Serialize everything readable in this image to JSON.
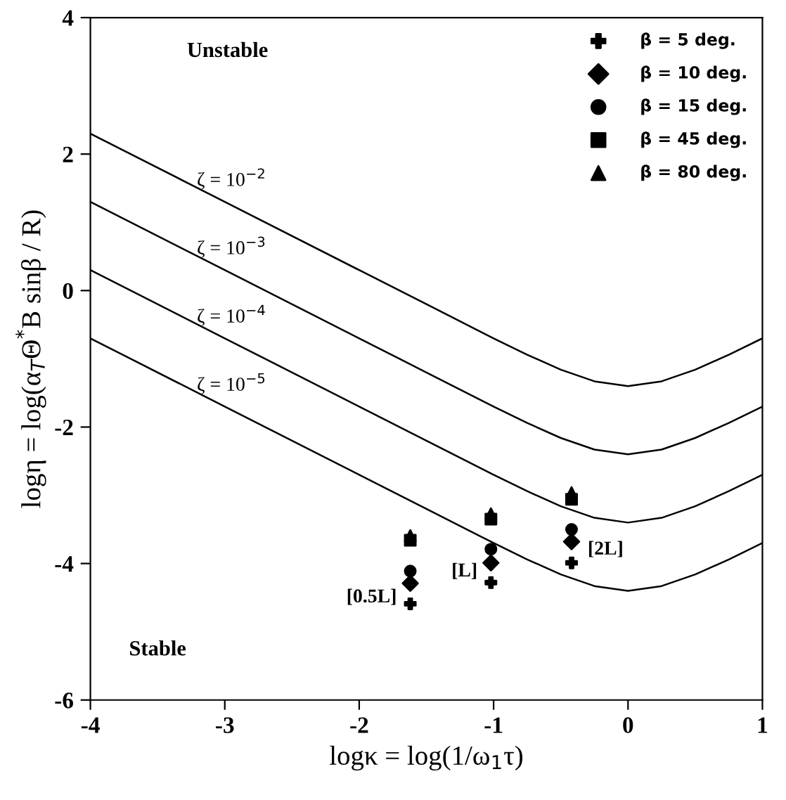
{
  "chart_data": {
    "type": "line",
    "xlabel": "logκ = log(1/ω$_{1}$τ)",
    "ylabel": "logη = log(α$_{T}$Θ$^{*}$B sinβ / R)",
    "xlim": [
      -4,
      1
    ],
    "ylim": [
      -6,
      4
    ],
    "xticks": [
      -4,
      -3,
      -2,
      -1,
      0,
      1
    ],
    "yticks": [
      -6,
      -4,
      -2,
      0,
      2,
      4
    ],
    "grid": false,
    "legend": "top right",
    "series": [
      {
        "name": "ζ = 10$^{−2}$",
        "color": "#000000",
        "marker": "none",
        "x": [
          -4,
          -3,
          -2,
          -1.5,
          -1,
          -0.75,
          -0.5,
          -0.25,
          0,
          0.25,
          0.5,
          0.75,
          1
        ],
        "values": [
          2.3,
          1.3,
          0.3,
          -0.2,
          -0.7,
          -0.94,
          -1.16,
          -1.33,
          -1.4,
          -1.33,
          -1.16,
          -0.94,
          -0.7
        ]
      },
      {
        "name": "ζ = 10$^{−3}$",
        "color": "#000000",
        "marker": "none",
        "x": [
          -4,
          -3,
          -2,
          -1.5,
          -1,
          -0.75,
          -0.5,
          -0.25,
          0,
          0.25,
          0.5,
          0.75,
          1
        ],
        "values": [
          1.3,
          0.3,
          -0.7,
          -1.2,
          -1.7,
          -1.94,
          -2.16,
          -2.33,
          -2.4,
          -2.33,
          -2.16,
          -1.94,
          -1.7
        ]
      },
      {
        "name": "ζ = 10$^{−4}$",
        "color": "#000000",
        "marker": "none",
        "x": [
          -4,
          -3,
          -2,
          -1.5,
          -1,
          -0.75,
          -0.5,
          -0.25,
          0,
          0.25,
          0.5,
          0.75,
          1
        ],
        "values": [
          0.3,
          -0.7,
          -1.7,
          -2.2,
          -2.7,
          -2.94,
          -3.16,
          -3.33,
          -3.4,
          -3.33,
          -3.16,
          -2.94,
          -2.7
        ]
      },
      {
        "name": "ζ = 10$^{−5}$",
        "color": "#000000",
        "marker": "none",
        "x": [
          -4,
          -3,
          -2,
          -1.5,
          -1,
          -0.75,
          -0.5,
          -0.25,
          0,
          0.25,
          0.5,
          0.75,
          1
        ],
        "values": [
          -0.7,
          -1.7,
          -2.7,
          -3.2,
          -3.7,
          -3.94,
          -4.16,
          -4.33,
          -4.4,
          -4.33,
          -4.16,
          -3.94,
          -3.7
        ]
      },
      {
        "type": "scatter",
        "name": "β = 5 deg.",
        "color": "#000000",
        "marker": "cross",
        "x": [
          -1.62,
          -1.02,
          -0.42
        ],
        "values": [
          -4.59,
          -4.28,
          -3.99
        ]
      },
      {
        "type": "scatter",
        "name": "β = 10 deg.",
        "color": "#000000",
        "marker": "diamond",
        "x": [
          -1.62,
          -1.02,
          -0.42
        ],
        "values": [
          -4.29,
          -3.99,
          -3.68
        ]
      },
      {
        "type": "scatter",
        "name": "β = 15 deg.",
        "color": "#000000",
        "marker": "circle",
        "x": [
          -1.62,
          -1.02,
          -0.42
        ],
        "values": [
          -4.11,
          -3.79,
          -3.5
        ]
      },
      {
        "type": "scatter",
        "name": "β = 45 deg.",
        "color": "#000000",
        "marker": "square",
        "x": [
          -1.62,
          -1.02,
          -0.42
        ],
        "values": [
          -3.66,
          -3.35,
          -3.06
        ]
      },
      {
        "type": "scatter",
        "name": "β = 80 deg.",
        "color": "#000000",
        "marker": "triangle",
        "x": [
          -1.62,
          -1.02,
          -0.42
        ],
        "values": [
          -3.59,
          -3.27,
          -2.96
        ]
      }
    ],
    "annotations": [
      "Unstable",
      "Stable",
      "[0.5L]",
      "[L]",
      "[2L]"
    ]
  }
}
